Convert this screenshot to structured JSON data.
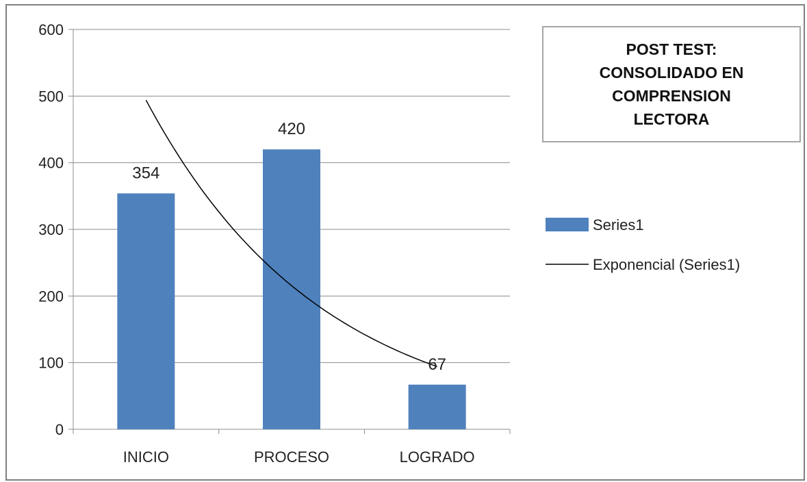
{
  "chart_data": {
    "type": "bar",
    "title": "POST TEST: CONSOLIDADO EN COMPRENSION LECTORA",
    "categories": [
      "INICIO",
      "PROCESO",
      "LOGRADO"
    ],
    "series": [
      {
        "name": "Series1",
        "values": [
          354,
          420,
          67
        ],
        "color": "#4f81bd"
      }
    ],
    "trendline": {
      "name": "Exponencial (Series1)",
      "type": "exponential",
      "color": "#000000",
      "values": [
        494,
        215,
        94
      ]
    },
    "ylim": [
      0,
      600
    ],
    "yticks": [
      0,
      100,
      200,
      300,
      400,
      500,
      600
    ],
    "xlabel": "",
    "ylabel": "",
    "grid": true,
    "legend_position": "right",
    "data_labels": [
      "354",
      "420",
      "67"
    ]
  }
}
